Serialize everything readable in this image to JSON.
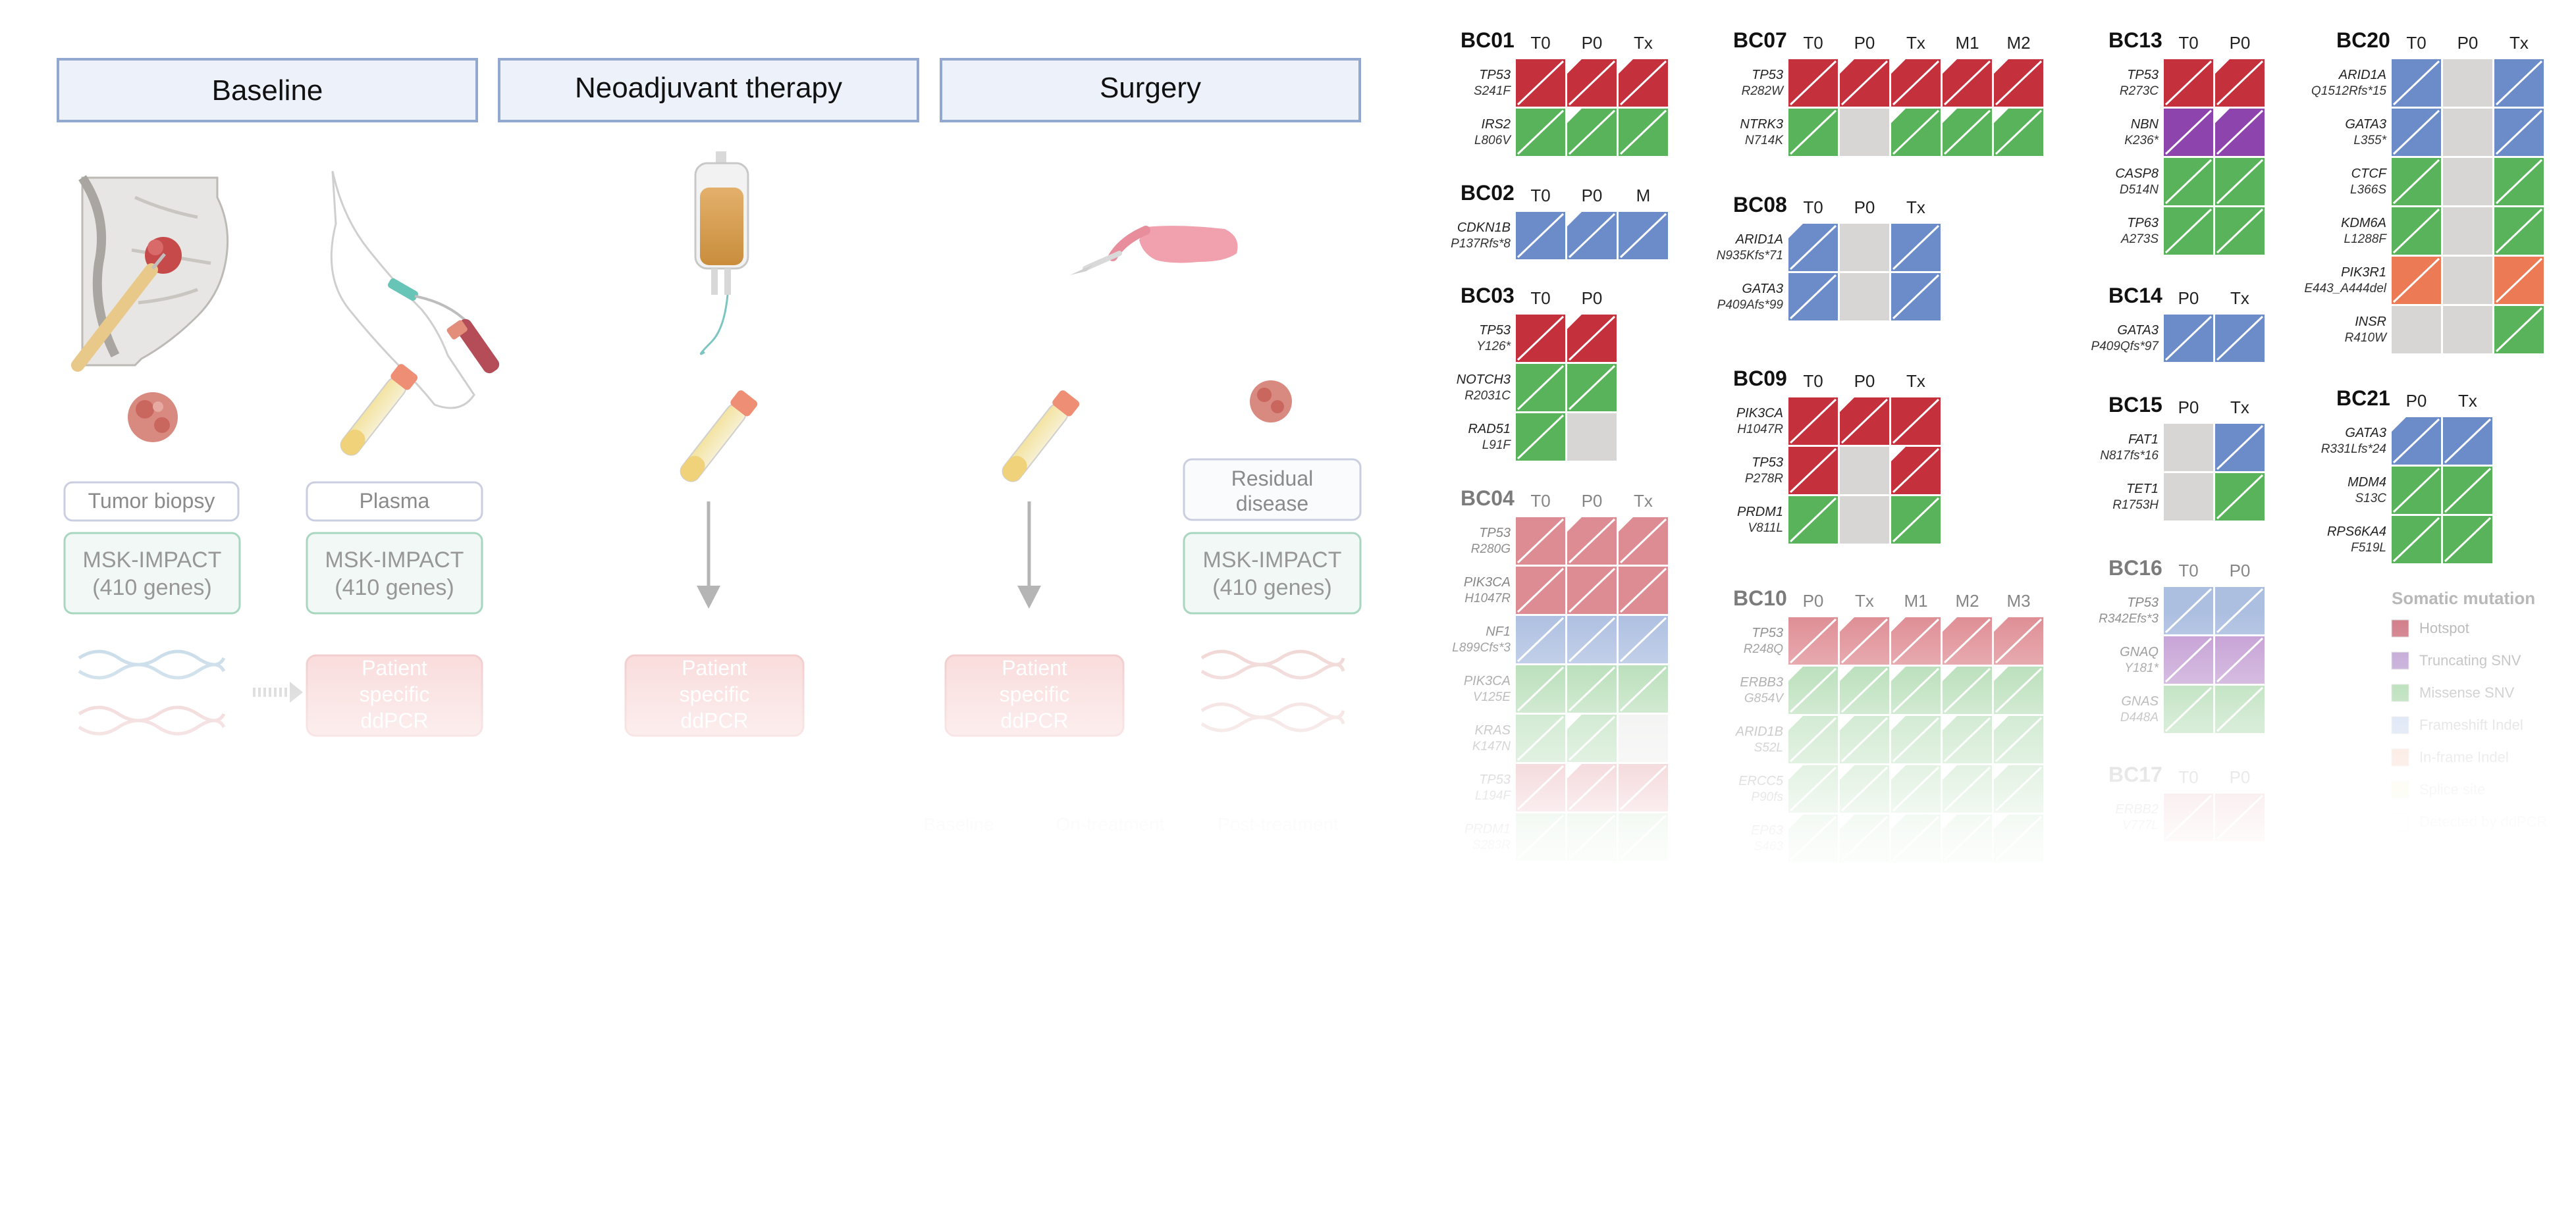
{
  "phases": [
    "Baseline",
    "Neoadjuvant therapy",
    "Surgery"
  ],
  "sample_labels": {
    "biopsy": "Tumor biopsy",
    "plasma": "Plasma",
    "residual": "Residual disease"
  },
  "assay": {
    "line1": "MSK-IMPACT",
    "line2": "(410 genes)"
  },
  "ddpcr": [
    "Patient",
    "specific",
    "ddPCR"
  ],
  "timeline": [
    "Baseline",
    "On-treatment",
    "Post-treatment"
  ],
  "colors": {
    "hotspot": "#c4303c",
    "truncating": "#8e44ad",
    "missense": "#59b35a",
    "frameshift": "#6b8cc9",
    "inframe": "#ec7a55",
    "splice": "#e8e46a",
    "absent": "#d8d6d4"
  },
  "legend": {
    "title": "Somatic mutation",
    "items": [
      {
        "label": "Hotspot",
        "color": "#d07a85"
      },
      {
        "label": "Truncating SNV",
        "color": "#b99ad0"
      },
      {
        "label": "Missense SNV",
        "color": "#9ad19a"
      },
      {
        "label": "Frameshift Indel",
        "color": "#a8bde6"
      },
      {
        "label": "In-frame Indel",
        "color": "#f3b79f"
      },
      {
        "label": "Splice site",
        "color": "#eeeaa9"
      },
      {
        "label": "Detected by ddPCR",
        "color": "#ffffff"
      }
    ]
  },
  "patients": [
    {
      "id": "BC01",
      "tp": [
        "T0",
        "P0",
        "Tx"
      ],
      "rows": [
        {
          "gene": "TP53",
          "var": "S241F",
          "c": [
            "H",
            "H",
            "H"
          ],
          "d": [
            0,
            1,
            1
          ]
        },
        {
          "gene": "IRS2",
          "var": "L806V",
          "c": [
            "M",
            "M",
            "M"
          ],
          "d": [
            0,
            1,
            0
          ]
        }
      ]
    },
    {
      "id": "BC02",
      "tp": [
        "T0",
        "P0",
        "M"
      ],
      "rows": [
        {
          "gene": "CDKN1B",
          "var": "P137Rfs*8",
          "c": [
            "F",
            "F",
            "F"
          ],
          "d": [
            0,
            1,
            0
          ]
        }
      ]
    },
    {
      "id": "BC03",
      "tp": [
        "T0",
        "P0"
      ],
      "rows": [
        {
          "gene": "TP53",
          "var": "Y126*",
          "c": [
            "H",
            "H"
          ],
          "d": [
            0,
            1
          ]
        },
        {
          "gene": "NOTCH3",
          "var": "R2031C",
          "c": [
            "M",
            "M"
          ],
          "d": [
            0,
            0
          ]
        },
        {
          "gene": "RAD51",
          "var": "L91F",
          "c": [
            "M",
            "A"
          ],
          "d": [
            0,
            0
          ]
        }
      ]
    },
    {
      "id": "BC04",
      "tp": [
        "T0",
        "P0",
        "Tx"
      ],
      "rows": [
        {
          "gene": "TP53",
          "var": "R280G",
          "c": [
            "H",
            "H",
            "H"
          ],
          "d": [
            0,
            1,
            1
          ]
        },
        {
          "gene": "PIK3CA",
          "var": "H1047R",
          "c": [
            "H",
            "H",
            "H"
          ],
          "d": [
            0,
            0,
            0
          ]
        },
        {
          "gene": "NF1",
          "var": "L899Cfs*3",
          "c": [
            "F",
            "F",
            "F"
          ],
          "d": [
            0,
            0,
            0
          ]
        },
        {
          "gene": "PIK3CA",
          "var": "V125E",
          "c": [
            "M",
            "M",
            "M"
          ],
          "d": [
            0,
            0,
            0
          ]
        },
        {
          "gene": "KRAS",
          "var": "K147N",
          "c": [
            "M",
            "M",
            "A"
          ],
          "d": [
            0,
            1,
            0
          ]
        },
        {
          "gene": "TP53",
          "var": "L194F",
          "c": [
            "H",
            "H",
            "H"
          ],
          "d": [
            0,
            1,
            0
          ]
        },
        {
          "gene": "PRDM1",
          "var": "S283R",
          "c": [
            "M",
            "M",
            "M"
          ],
          "d": [
            0,
            0,
            0
          ]
        }
      ]
    },
    {
      "id": "BC07",
      "tp": [
        "T0",
        "P0",
        "Tx",
        "M1",
        "M2"
      ],
      "rows": [
        {
          "gene": "TP53",
          "var": "R282W",
          "c": [
            "H",
            "H",
            "H",
            "H",
            "H"
          ],
          "d": [
            0,
            1,
            1,
            1,
            1
          ]
        },
        {
          "gene": "NTRK3",
          "var": "N714K",
          "c": [
            "M",
            "A",
            "M",
            "M",
            "M"
          ],
          "d": [
            0,
            0,
            1,
            1,
            1
          ]
        }
      ]
    },
    {
      "id": "BC08",
      "tp": [
        "T0",
        "P0",
        "Tx"
      ],
      "rows": [
        {
          "gene": "ARID1A",
          "var": "N935Kfs*71",
          "c": [
            "F",
            "A",
            "F"
          ],
          "d": [
            1,
            0,
            0
          ]
        },
        {
          "gene": "GATA3",
          "var": "P409Afs*99",
          "c": [
            "F",
            "A",
            "F"
          ],
          "d": [
            0,
            0,
            0
          ]
        }
      ]
    },
    {
      "id": "BC09",
      "tp": [
        "T0",
        "P0",
        "Tx"
      ],
      "rows": [
        {
          "gene": "PIK3CA",
          "var": "H1047R",
          "c": [
            "H",
            "H",
            "H"
          ],
          "d": [
            0,
            1,
            0
          ]
        },
        {
          "gene": "TP53",
          "var": "P278R",
          "c": [
            "H",
            "A",
            "H"
          ],
          "d": [
            0,
            0,
            1
          ]
        },
        {
          "gene": "PRDM1",
          "var": "V811L",
          "c": [
            "M",
            "A",
            "M"
          ],
          "d": [
            0,
            0,
            0
          ]
        }
      ]
    },
    {
      "id": "BC10",
      "tp": [
        "P0",
        "Tx",
        "M1",
        "M2",
        "M3"
      ],
      "rows": [
        {
          "gene": "TP53",
          "var": "R248Q",
          "c": [
            "H",
            "H",
            "H",
            "H",
            "H"
          ],
          "d": [
            0,
            1,
            1,
            1,
            1
          ]
        },
        {
          "gene": "ERBB3",
          "var": "G854V",
          "c": [
            "M",
            "M",
            "M",
            "M",
            "M"
          ],
          "d": [
            1,
            1,
            1,
            1,
            1
          ]
        },
        {
          "gene": "ARID1B",
          "var": "S52L",
          "c": [
            "M",
            "M",
            "M",
            "M",
            "M"
          ],
          "d": [
            1,
            1,
            1,
            1,
            1
          ]
        },
        {
          "gene": "ERCC5",
          "var": "P90fs",
          "c": [
            "M",
            "M",
            "M",
            "M",
            "M"
          ],
          "d": [
            1,
            1,
            1,
            1,
            1
          ]
        },
        {
          "gene": "EP63",
          "var": "S463",
          "c": [
            "M",
            "M",
            "M",
            "M",
            "M"
          ],
          "d": [
            1,
            1,
            1,
            1,
            1
          ]
        }
      ]
    },
    {
      "id": "BC13",
      "tp": [
        "T0",
        "P0"
      ],
      "rows": [
        {
          "gene": "TP53",
          "var": "R273C",
          "c": [
            "H",
            "H"
          ],
          "d": [
            0,
            1
          ]
        },
        {
          "gene": "NBN",
          "var": "K236*",
          "c": [
            "T",
            "T"
          ],
          "d": [
            0,
            1
          ]
        },
        {
          "gene": "CASP8",
          "var": "D514N",
          "c": [
            "M",
            "M"
          ],
          "d": [
            0,
            0
          ]
        },
        {
          "gene": "TP63",
          "var": "A273S",
          "c": [
            "M",
            "M"
          ],
          "d": [
            0,
            0
          ]
        }
      ]
    },
    {
      "id": "BC14",
      "tp": [
        "P0",
        "Tx"
      ],
      "rows": [
        {
          "gene": "GATA3",
          "var": "P409Qfs*97",
          "c": [
            "F",
            "F"
          ],
          "d": [
            0,
            0
          ]
        }
      ]
    },
    {
      "id": "BC15",
      "tp": [
        "P0",
        "Tx"
      ],
      "rows": [
        {
          "gene": "FAT1",
          "var": "N817fs*16",
          "c": [
            "A",
            "F"
          ],
          "d": [
            0,
            0
          ]
        },
        {
          "gene": "TET1",
          "var": "R1753H",
          "c": [
            "A",
            "M"
          ],
          "d": [
            0,
            0
          ]
        }
      ]
    },
    {
      "id": "BC16",
      "tp": [
        "T0",
        "P0"
      ],
      "rows": [
        {
          "gene": "TP53",
          "var": "R342Efs*3",
          "c": [
            "F",
            "F"
          ],
          "d": [
            0,
            0
          ]
        },
        {
          "gene": "GNAQ",
          "var": "Y181*",
          "c": [
            "T",
            "T"
          ],
          "d": [
            0,
            0
          ]
        },
        {
          "gene": "GNAS",
          "var": "D448A",
          "c": [
            "M",
            "M"
          ],
          "d": [
            0,
            0
          ]
        }
      ]
    },
    {
      "id": "BC17",
      "tp": [
        "T0",
        "P0"
      ],
      "rows": [
        {
          "gene": "ERBB2",
          "var": "V777L",
          "c": [
            "H",
            "H"
          ],
          "d": [
            0,
            0
          ]
        }
      ]
    },
    {
      "id": "BC20",
      "tp": [
        "T0",
        "P0",
        "Tx"
      ],
      "rows": [
        {
          "gene": "ARID1A",
          "var": "Q1512Rfs*15",
          "c": [
            "F",
            "A",
            "F"
          ],
          "d": [
            0,
            0,
            0
          ]
        },
        {
          "gene": "GATA3",
          "var": "L355*",
          "c": [
            "F",
            "A",
            "F"
          ],
          "d": [
            0,
            0,
            0
          ]
        },
        {
          "gene": "CTCF",
          "var": "L366S",
          "c": [
            "M",
            "A",
            "M"
          ],
          "d": [
            0,
            0,
            0
          ]
        },
        {
          "gene": "KDM6A",
          "var": "L1288F",
          "c": [
            "M",
            "A",
            "M"
          ],
          "d": [
            0,
            0,
            0
          ]
        },
        {
          "gene": "PIK3R1",
          "var": "E443_A444del",
          "c": [
            "I",
            "A",
            "I"
          ],
          "d": [
            0,
            0,
            0
          ]
        },
        {
          "gene": "INSR",
          "var": "R410W",
          "c": [
            "A",
            "A",
            "M"
          ],
          "d": [
            0,
            0,
            0
          ]
        }
      ]
    },
    {
      "id": "BC21",
      "tp": [
        "P0",
        "Tx"
      ],
      "rows": [
        {
          "gene": "GATA3",
          "var": "R331Lfs*24",
          "c": [
            "F",
            "F"
          ],
          "d": [
            1,
            0
          ]
        },
        {
          "gene": "MDM4",
          "var": "S13C",
          "c": [
            "M",
            "M"
          ],
          "d": [
            0,
            0
          ]
        },
        {
          "gene": "RPS6KA4",
          "var": "F519L",
          "c": [
            "M",
            "M"
          ],
          "d": [
            0,
            0
          ]
        }
      ]
    }
  ]
}
